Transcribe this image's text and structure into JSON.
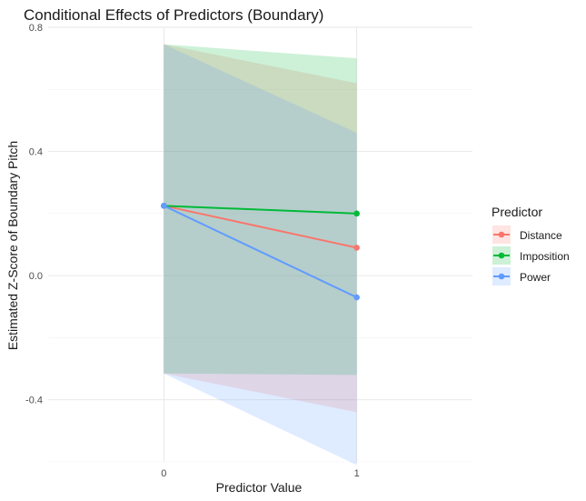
{
  "chart_data": {
    "type": "line",
    "title": "Conditional Effects of Predictors (Boundary)",
    "xlabel": "Predictor Value",
    "ylabel": "Estimated Z-Score of Boundary Pitch",
    "x": [
      0,
      1
    ],
    "x_ticks": [
      "0",
      "1"
    ],
    "xlim": [
      -0.6,
      1.6
    ],
    "ylim": [
      -0.6,
      0.8
    ],
    "y_ticks": [
      "-0.4",
      "0.0",
      "0.4",
      "0.8"
    ],
    "grid": true,
    "legend": {
      "title": "Predictor",
      "position": "right"
    },
    "series": [
      {
        "name": "Distance",
        "color": "#F8766D",
        "values": [
          0.225,
          0.09
        ],
        "lower": [
          -0.315,
          -0.44
        ],
        "upper": [
          0.745,
          0.62
        ]
      },
      {
        "name": "Imposition",
        "color": "#00BA38",
        "values": [
          0.225,
          0.2
        ],
        "lower": [
          -0.315,
          -0.32
        ],
        "upper": [
          0.745,
          0.7
        ]
      },
      {
        "name": "Power",
        "color": "#619CFF",
        "values": [
          0.225,
          -0.07
        ],
        "lower": [
          -0.315,
          -0.61
        ],
        "upper": [
          0.745,
          0.46
        ]
      }
    ]
  }
}
